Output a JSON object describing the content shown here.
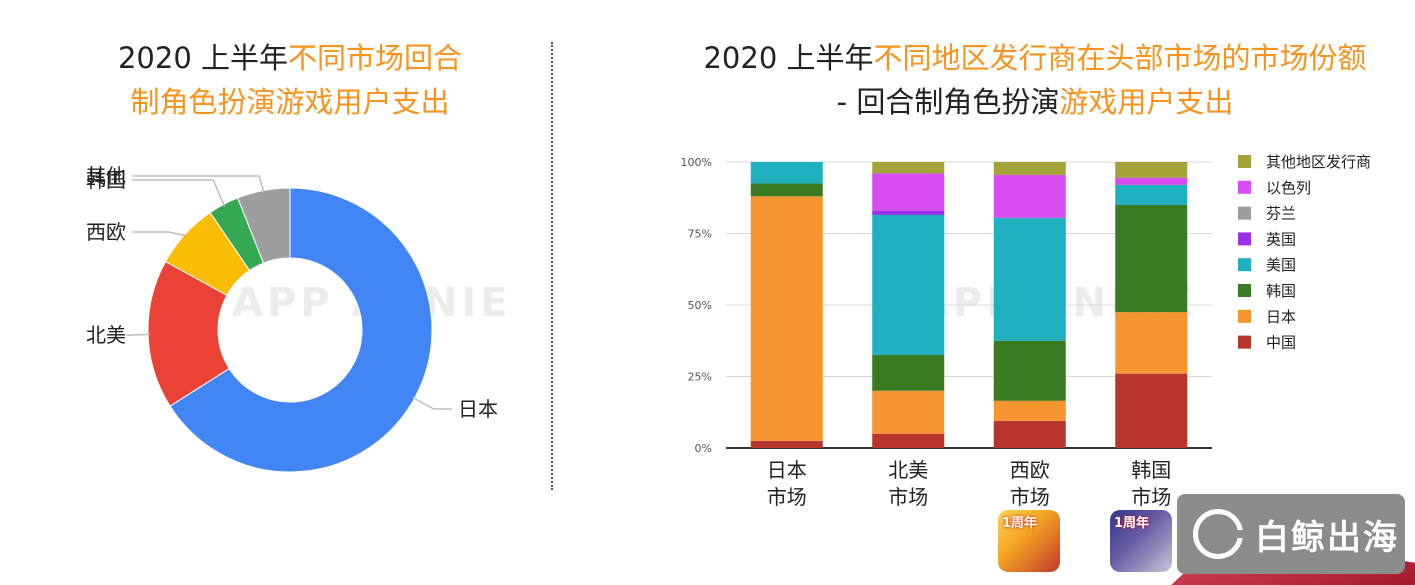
{
  "left_panel": {
    "title_line1_plain": "2020 上半年",
    "title_line1_highlight": "不同市场回合",
    "title_line2_highlight": "制角色扮演游戏用户支出"
  },
  "right_panel": {
    "title_line1_plain": "2020 上半年",
    "title_line1_highlight": "不同地区发行商在头部市场的市场份额",
    "title_line2_plain": "- 回合制角色扮演",
    "title_line2_highlight": "游戏用户支出"
  },
  "watermark": "APP ANNIE",
  "brand": {
    "text": "白鲸出海"
  },
  "app_icons": [
    {
      "label": "1周年"
    },
    {
      "label": "1周年"
    }
  ],
  "colors": {
    "highlight": "#f7931e",
    "japan_blue": "#4285f4",
    "na_red": "#ea4335",
    "eu_yellow": "#fbbc04",
    "kr_green": "#34a853",
    "other_gray": "#9e9e9e"
  },
  "chart_data": [
    {
      "type": "pie",
      "subtype": "donut",
      "title": "2020 上半年不同市场回合制角色扮演游戏用户支出",
      "categories": [
        "日本",
        "北美",
        "西欧",
        "韩国",
        "其他"
      ],
      "values": [
        66,
        17,
        7.5,
        3.5,
        6
      ],
      "colors": [
        "#4285f4",
        "#ea4335",
        "#fbbc04",
        "#34a853",
        "#9e9e9e"
      ],
      "start_angle_deg": 0,
      "direction": "clockwise"
    },
    {
      "type": "bar",
      "stacked": true,
      "normalized": true,
      "title": "2020 上半年不同地区发行商在头部市场的市场份额 - 回合制角色扮演游戏用户支出",
      "categories": [
        "日本市场",
        "北美市场",
        "西欧市场",
        "韩国市场"
      ],
      "category_lines": [
        [
          "日本",
          "市场"
        ],
        [
          "北美",
          "市场"
        ],
        [
          "西欧",
          "市场"
        ],
        [
          "韩国",
          "市场"
        ]
      ],
      "yticks": [
        "0%",
        "25%",
        "50%",
        "75%",
        "100%"
      ],
      "ylim": [
        0,
        100
      ],
      "series": [
        {
          "name": "中国",
          "color": "#b8352d",
          "values": [
            2.5,
            5,
            9.5,
            26
          ]
        },
        {
          "name": "日本",
          "color": "#f7962f",
          "values": [
            85.5,
            15,
            7,
            21.5
          ]
        },
        {
          "name": "韩国",
          "color": "#3a7a23",
          "values": [
            4.5,
            12.5,
            21,
            37.5
          ]
        },
        {
          "name": "美国",
          "color": "#1fb0c0",
          "values": [
            7.5,
            49,
            43,
            7
          ]
        },
        {
          "name": "英国",
          "color": "#9b30e8",
          "values": [
            0,
            1.5,
            0,
            0
          ]
        },
        {
          "name": "芬兰",
          "color": "#9e9e9e",
          "values": [
            0,
            0,
            0,
            0
          ]
        },
        {
          "name": "以色列",
          "color": "#d84df2",
          "values": [
            0,
            13,
            15,
            2.5
          ]
        },
        {
          "name": "其他地区发行商",
          "color": "#a3a339",
          "values": [
            0,
            4,
            4.5,
            5.5
          ]
        }
      ],
      "legend_order": [
        "其他地区发行商",
        "以色列",
        "芬兰",
        "英国",
        "美国",
        "韩国",
        "日本",
        "中国"
      ],
      "legend_position": "right"
    }
  ]
}
